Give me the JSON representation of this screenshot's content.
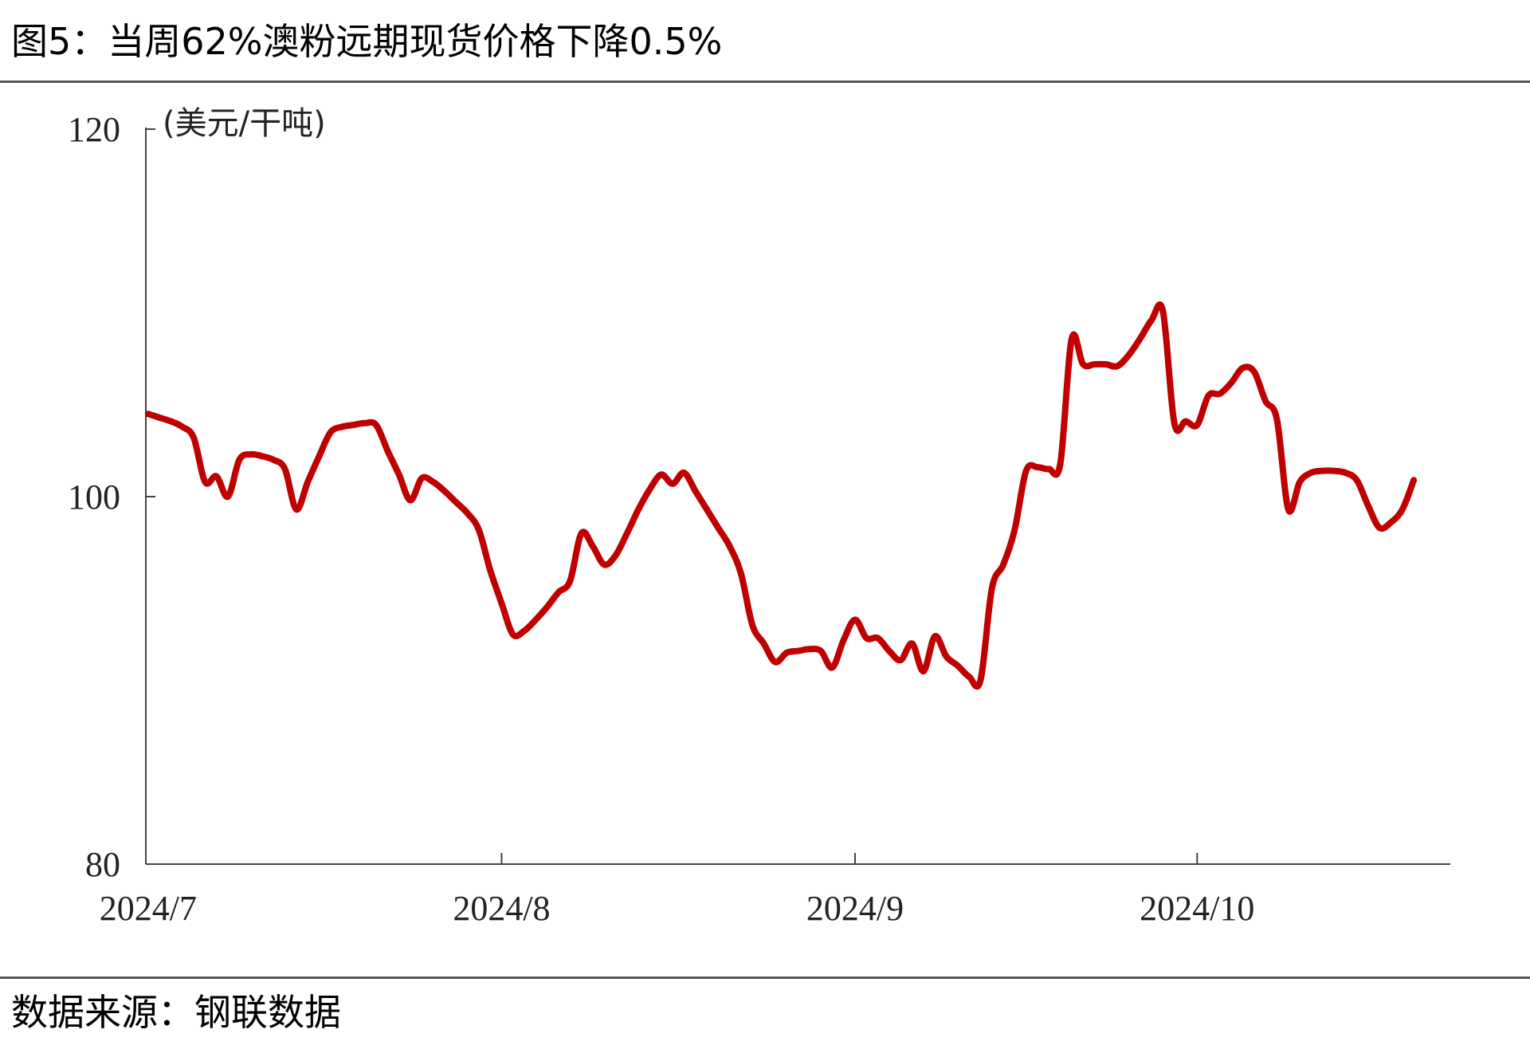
{
  "header": {
    "title": "图5：当周62%澳粉远期现货价格下降0.5%"
  },
  "footer": {
    "source": "数据来源：钢联数据"
  },
  "chart_data": {
    "type": "line",
    "title": "图5：当周62%澳粉远期现货价格下降0.5%",
    "xlabel": "",
    "ylabel": "(美元/干吨)",
    "ylim": [
      80,
      120
    ],
    "yticks": [
      "80",
      "100",
      "120"
    ],
    "xticks": [
      "2024/7",
      "2024/8",
      "2024/9",
      "2024/10"
    ],
    "grid": false,
    "legend": "none",
    "series": [
      {
        "color": "#c00000",
        "points": [
          [
            "2024/7/1",
            104.5
          ],
          [
            "2024/7/2",
            104.3
          ],
          [
            "2024/7/3",
            104.1
          ],
          [
            "2024/7/4",
            103.8
          ],
          [
            "2024/7/5",
            103.2
          ],
          [
            "2024/7/6",
            100.8
          ],
          [
            "2024/7/7",
            101.1
          ],
          [
            "2024/7/8",
            100.0
          ],
          [
            "2024/7/9",
            102.0
          ],
          [
            "2024/7/10",
            102.3
          ],
          [
            "2024/7/11",
            102.2
          ],
          [
            "2024/7/12",
            102.0
          ],
          [
            "2024/7/13",
            101.5
          ],
          [
            "2024/7/14",
            99.3
          ],
          [
            "2024/7/15",
            100.8
          ],
          [
            "2024/7/16",
            102.2
          ],
          [
            "2024/7/17",
            103.5
          ],
          [
            "2024/7/18",
            103.8
          ],
          [
            "2024/7/19",
            103.9
          ],
          [
            "2024/7/20",
            104.0
          ],
          [
            "2024/7/21",
            103.9
          ],
          [
            "2024/7/22",
            102.5
          ],
          [
            "2024/7/23",
            101.2
          ],
          [
            "2024/7/24",
            99.8
          ],
          [
            "2024/7/25",
            101.0
          ],
          [
            "2024/7/26",
            100.8
          ],
          [
            "2024/7/27",
            100.3
          ],
          [
            "2024/7/28",
            99.7
          ],
          [
            "2024/7/29",
            99.1
          ],
          [
            "2024/7/30",
            98.2
          ],
          [
            "2024/7/31",
            96.0
          ],
          [
            "2024/8/1",
            94.2
          ],
          [
            "2024/8/2",
            92.5
          ],
          [
            "2024/8/3",
            92.7
          ],
          [
            "2024/8/4",
            93.3
          ],
          [
            "2024/8/5",
            94.0
          ],
          [
            "2024/8/6",
            94.8
          ],
          [
            "2024/8/7",
            95.4
          ],
          [
            "2024/8/8",
            98.0
          ],
          [
            "2024/8/9",
            97.3
          ],
          [
            "2024/8/10",
            96.3
          ],
          [
            "2024/8/11",
            96.8
          ],
          [
            "2024/8/12",
            98.0
          ],
          [
            "2024/8/13",
            99.3
          ],
          [
            "2024/8/14",
            100.4
          ],
          [
            "2024/8/15",
            101.2
          ],
          [
            "2024/8/16",
            100.7
          ],
          [
            "2024/8/17",
            101.3
          ],
          [
            "2024/8/18",
            100.3
          ],
          [
            "2024/8/19",
            99.3
          ],
          [
            "2024/8/20",
            98.3
          ],
          [
            "2024/8/21",
            97.3
          ],
          [
            "2024/8/22",
            95.8
          ],
          [
            "2024/8/23",
            93.0
          ],
          [
            "2024/8/24",
            92.0
          ],
          [
            "2024/8/25",
            91.0
          ],
          [
            "2024/8/26",
            91.5
          ],
          [
            "2024/8/27",
            91.6
          ],
          [
            "2024/8/28",
            91.7
          ],
          [
            "2024/8/29",
            91.6
          ],
          [
            "2024/8/30",
            90.7
          ],
          [
            "2024/8/31",
            92.2
          ],
          [
            "2024/9/1",
            93.3
          ],
          [
            "2024/9/2",
            92.3
          ],
          [
            "2024/9/3",
            92.3
          ],
          [
            "2024/9/4",
            91.6
          ],
          [
            "2024/9/5",
            91.1
          ],
          [
            "2024/9/6",
            92.0
          ],
          [
            "2024/9/7",
            90.5
          ],
          [
            "2024/9/8",
            92.4
          ],
          [
            "2024/9/9",
            91.3
          ],
          [
            "2024/9/10",
            90.8
          ],
          [
            "2024/9/11",
            90.2
          ],
          [
            "2024/9/12",
            90.0
          ],
          [
            "2024/9/13",
            95.0
          ],
          [
            "2024/9/14",
            96.3
          ],
          [
            "2024/9/15",
            98.2
          ],
          [
            "2024/9/16",
            101.4
          ],
          [
            "2024/9/17",
            101.6
          ],
          [
            "2024/9/18",
            101.5
          ],
          [
            "2024/9/19",
            101.8
          ],
          [
            "2024/9/20",
            108.6
          ],
          [
            "2024/9/21",
            107.2
          ],
          [
            "2024/9/22",
            107.2
          ],
          [
            "2024/9/23",
            107.2
          ],
          [
            "2024/9/24",
            107.1
          ],
          [
            "2024/9/25",
            107.7
          ],
          [
            "2024/9/26",
            108.6
          ],
          [
            "2024/9/27",
            109.6
          ],
          [
            "2024/9/28",
            110.1
          ],
          [
            "2024/9/29",
            104.0
          ],
          [
            "2024/9/30",
            104.1
          ],
          [
            "2024/10/1",
            103.9
          ],
          [
            "2024/10/2",
            105.5
          ],
          [
            "2024/10/3",
            105.6
          ],
          [
            "2024/10/4",
            106.2
          ],
          [
            "2024/10/5",
            107.0
          ],
          [
            "2024/10/6",
            106.8
          ],
          [
            "2024/10/7",
            105.2
          ],
          [
            "2024/10/8",
            104.2
          ],
          [
            "2024/10/9",
            99.3
          ],
          [
            "2024/10/10",
            100.8
          ],
          [
            "2024/10/11",
            101.3
          ],
          [
            "2024/10/12",
            101.4
          ],
          [
            "2024/10/13",
            101.4
          ],
          [
            "2024/10/14",
            101.3
          ],
          [
            "2024/10/15",
            100.9
          ],
          [
            "2024/10/16",
            99.5
          ],
          [
            "2024/10/17",
            98.3
          ],
          [
            "2024/10/18",
            98.6
          ],
          [
            "2024/10/19",
            99.3
          ],
          [
            "2024/10/20",
            100.9
          ]
        ]
      }
    ]
  }
}
